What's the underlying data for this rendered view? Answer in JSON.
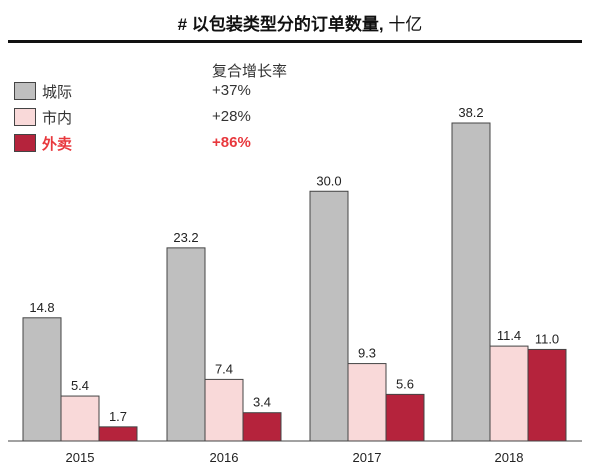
{
  "chart_data": {
    "type": "bar",
    "title": "# 以包装类型分的订单数量,",
    "unit": "十亿",
    "categories": [
      "2015",
      "2016",
      "2017",
      "2018"
    ],
    "series": [
      {
        "name": "城际",
        "values": [
          14.8,
          23.2,
          30.0,
          38.2
        ],
        "color": "#bfbfbf",
        "cagr": "+37%"
      },
      {
        "name": "市内",
        "values": [
          5.4,
          7.4,
          9.3,
          11.4
        ],
        "color": "#f9d9d9",
        "cagr": "+28%"
      },
      {
        "name": "外卖",
        "values": [
          1.7,
          3.4,
          5.6,
          11.0
        ],
        "color": "#b5233c",
        "cagr": "+86%"
      }
    ],
    "cagr_header": "复合增长率",
    "highlight_color": "#e8383d",
    "ylim": [
      0,
      40
    ],
    "legend": "top-left",
    "grid": false
  }
}
